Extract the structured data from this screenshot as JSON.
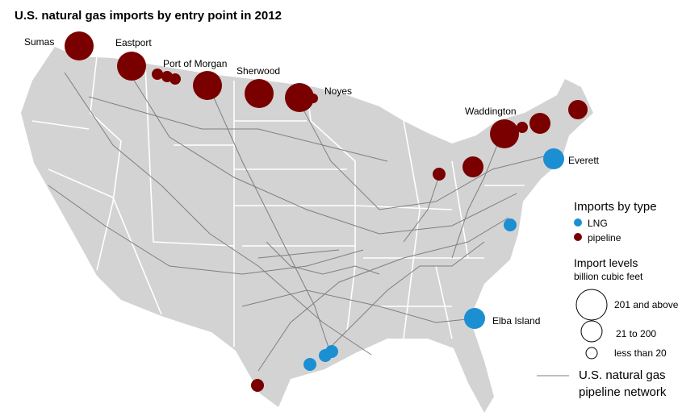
{
  "title": "U.S. natural gas imports by entry point in 2012",
  "entry_points": [
    "Sumas",
    "Eastport",
    "Port of Morgan",
    "Sherwood",
    "Noyes",
    "Waddington",
    "Everett",
    "Elba Island"
  ],
  "legend": {
    "type_title": "Imports by type",
    "types": [
      "LNG",
      "pipeline"
    ],
    "level_title": "Import levels",
    "level_unit": "billion cubic feet",
    "levels": [
      "201 and above",
      "21 to 200",
      "less than 20"
    ],
    "network": [
      "U.S. natural gas",
      "pipeline network"
    ]
  }
}
